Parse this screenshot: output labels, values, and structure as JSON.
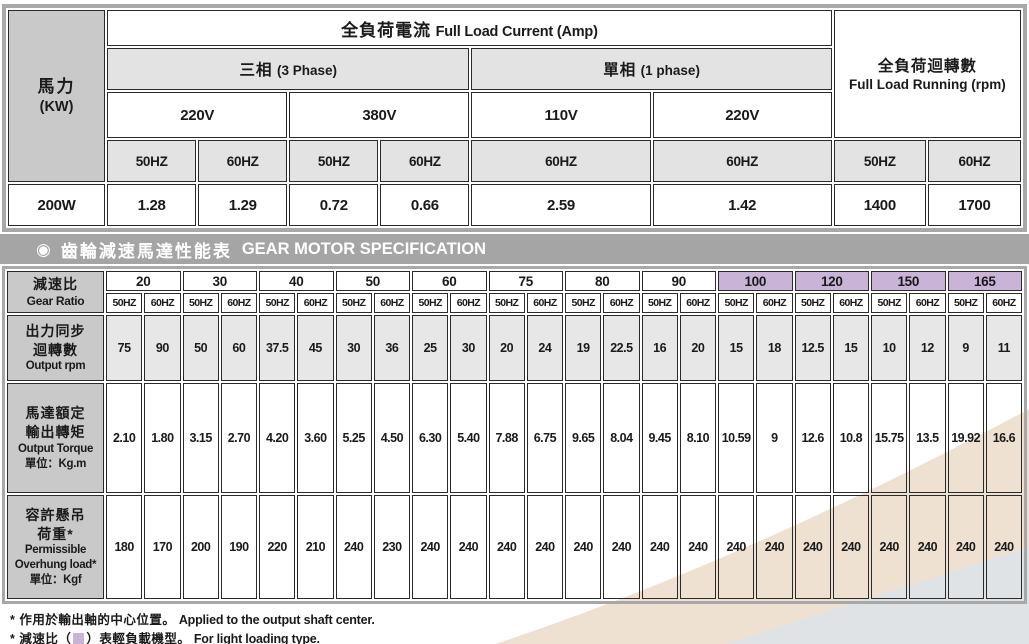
{
  "top_table": {
    "power_label": {
      "zh": "馬力",
      "unit": "(KW)"
    },
    "current_header": {
      "zh": "全負荷電流",
      "en": "Full Load Current (Amp)"
    },
    "rpm_header": {
      "zh": "全負荷迴轉數",
      "en": "Full Load Running (rpm)"
    },
    "phase3": {
      "zh": "三相",
      "en": "(3 Phase)"
    },
    "phase1": {
      "zh": "單相",
      "en": "(1 phase)"
    },
    "voltages": [
      "220V",
      "380V",
      "110V",
      "220V"
    ],
    "hz": [
      "50HZ",
      "60HZ",
      "50HZ",
      "60HZ",
      "60HZ",
      "60HZ",
      "50HZ",
      "60HZ"
    ],
    "data_row": {
      "power": "200W",
      "values": [
        "1.28",
        "1.29",
        "0.72",
        "0.66",
        "2.59",
        "1.42",
        "1400",
        "1700"
      ]
    }
  },
  "section": {
    "bullet": "◉",
    "title_zh": "齒輪減速馬達性能表",
    "title_en": "GEAR MOTOR SPECIFICATION"
  },
  "gear_table": {
    "ratio_label": {
      "zh": "減速比",
      "en": "Gear Ratio"
    },
    "hz_50": "50HZ",
    "hz_60": "60HZ",
    "ratios": [
      {
        "value": "20",
        "light": false
      },
      {
        "value": "30",
        "light": false
      },
      {
        "value": "40",
        "light": false
      },
      {
        "value": "50",
        "light": false
      },
      {
        "value": "60",
        "light": false
      },
      {
        "value": "75",
        "light": false
      },
      {
        "value": "80",
        "light": false
      },
      {
        "value": "90",
        "light": false
      },
      {
        "value": "100",
        "light": true
      },
      {
        "value": "120",
        "light": true
      },
      {
        "value": "150",
        "light": true
      },
      {
        "value": "165",
        "light": true
      }
    ],
    "rows": [
      {
        "key": "rpm",
        "label_lines": [
          {
            "t": "出力同步",
            "en": false
          },
          {
            "t": "迴轉數",
            "en": false
          },
          {
            "t": "Output rpm",
            "en": true
          }
        ],
        "cell_class": "rpmbg",
        "values": [
          "75",
          "90",
          "50",
          "60",
          "37.5",
          "45",
          "30",
          "36",
          "25",
          "30",
          "20",
          "24",
          "19",
          "22.5",
          "16",
          "20",
          "15",
          "18",
          "12.5",
          "15",
          "10",
          "12",
          "9",
          "11"
        ]
      },
      {
        "key": "torque",
        "label_lines": [
          {
            "t": "馬達額定",
            "en": false
          },
          {
            "t": "輸出轉矩",
            "en": false
          },
          {
            "t": "Output Torque",
            "en": true
          },
          {
            "t": "單位：Kg.m",
            "en": true
          }
        ],
        "cell_class": "clear",
        "values": [
          "2.10",
          "1.80",
          "3.15",
          "2.70",
          "4.20",
          "3.60",
          "5.25",
          "4.50",
          "6.30",
          "5.40",
          "7.88",
          "6.75",
          "9.65",
          "8.04",
          "9.45",
          "8.10",
          "10.59",
          "9",
          "12.6",
          "10.8",
          "15.75",
          "13.5",
          "19.92",
          "16.6"
        ]
      },
      {
        "key": "overhung",
        "label_lines": [
          {
            "t": "容許懸吊",
            "en": false
          },
          {
            "t": "荷重*",
            "en": false
          },
          {
            "t": "Permissible",
            "en": true
          },
          {
            "t": "Overhung load*",
            "en": true
          },
          {
            "t": "單位：Kgf",
            "en": true
          }
        ],
        "cell_class": "clear",
        "values": [
          "180",
          "170",
          "200",
          "190",
          "220",
          "210",
          "240",
          "230",
          "240",
          "240",
          "240",
          "240",
          "240",
          "240",
          "240",
          "240",
          "240",
          "240",
          "240",
          "240",
          "240",
          "240",
          "240",
          "240"
        ]
      }
    ]
  },
  "footnotes": {
    "line1": {
      "zh": "* 作用於輸出軸的中心位置。",
      "en": "Applied to the output shaft center."
    },
    "line2": {
      "zh_pre": "* 減速比（",
      "zh_post": "）表輕負載機型。",
      "en": "For light loading type."
    }
  },
  "colors": {
    "highlight_purple": "#c9b3d6",
    "beige_band": "#eee1d1",
    "corner_gray": "#e0e3e6",
    "bar_gray": "#a5a5a5",
    "border_gray": "#a8a8a8",
    "label_gray": "#c9c9c9",
    "header_gray": "#e3e3e3",
    "rpm_row_gray": "#e7e7e7"
  }
}
